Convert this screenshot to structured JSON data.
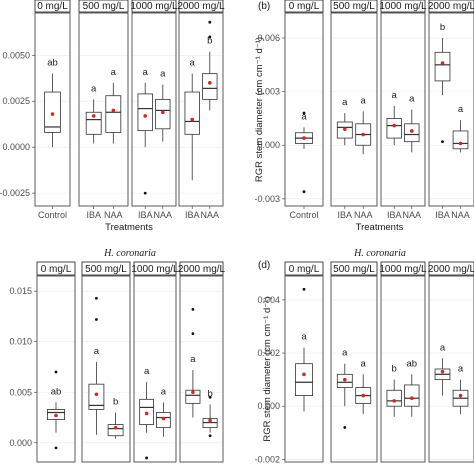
{
  "colors": {
    "mean": "#d62728",
    "outlier": "#111111",
    "box_stroke": "#333333",
    "grid": "#ebebeb"
  },
  "chart_data": [
    {
      "type": "box",
      "tag": "",
      "title": "",
      "ylabel": "",
      "xlabel": "Treatments",
      "ylim": [
        -0.0032,
        0.0073
      ],
      "yticks": [
        -0.0025,
        0.0,
        0.0025,
        0.005
      ],
      "ytick_labels": [
        "-0.0025",
        "0.0000",
        "0.0025",
        "0.0050"
      ],
      "facets": [
        {
          "label": "0 mg/L",
          "categories": [
            "Control"
          ],
          "boxes": [
            {
              "q1": 0.0008,
              "median": 0.0011,
              "q3": 0.003,
              "wlo": 0.0,
              "whi": 0.004,
              "mean": 0.0018,
              "outliers": [],
              "letter": "ab"
            }
          ]
        },
        {
          "label": "500 mg/L",
          "categories": [
            "IBA",
            "NAA"
          ],
          "boxes": [
            {
              "q1": 0.0007,
              "median": 0.0015,
              "q3": 0.0019,
              "wlo": 0.0002,
              "whi": 0.0026,
              "mean": 0.0017,
              "outliers": [],
              "letter": "a"
            },
            {
              "q1": 0.0008,
              "median": 0.0019,
              "q3": 0.0028,
              "wlo": 0.0002,
              "whi": 0.0035,
              "mean": 0.002,
              "outliers": [],
              "letter": "a"
            }
          ]
        },
        {
          "label": "1000 mg/L",
          "categories": [
            "IBA",
            "NAA"
          ],
          "boxes": [
            {
              "q1": 0.0009,
              "median": 0.0021,
              "q3": 0.0029,
              "wlo": 0.0,
              "whi": 0.0035,
              "mean": 0.0017,
              "outliers": [
                -0.0025
              ],
              "letter": "a"
            },
            {
              "q1": 0.001,
              "median": 0.002,
              "q3": 0.0026,
              "wlo": 0.0003,
              "whi": 0.0034,
              "mean": 0.0019,
              "outliers": [],
              "letter": "a"
            }
          ]
        },
        {
          "label": "2000 mg/L",
          "categories": [
            "IBA",
            "NAA"
          ],
          "boxes": [
            {
              "q1": 0.0007,
              "median": 0.0014,
              "q3": 0.003,
              "wlo": -0.0018,
              "whi": 0.004,
              "mean": 0.0015,
              "outliers": [],
              "letter": "a"
            },
            {
              "q1": 0.0026,
              "median": 0.0032,
              "q3": 0.004,
              "wlo": 0.002,
              "whi": 0.0052,
              "mean": 0.0035,
              "outliers": [
                0.006,
                0.0068
              ],
              "letter": "b"
            }
          ]
        }
      ]
    },
    {
      "type": "box",
      "tag": "(b)",
      "title": "",
      "ylabel": "RGR stem diameter (cm cm⁻¹ d⁻¹)",
      "xlabel": "Treatments",
      "ylim": [
        -0.0034,
        0.0074
      ],
      "yticks": [
        -0.003,
        0.0,
        0.003,
        0.006
      ],
      "ytick_labels": [
        "-0.003",
        "0.000",
        "0.003",
        "0.006"
      ],
      "facets": [
        {
          "label": "0 mg/L",
          "categories": [
            "Control"
          ],
          "boxes": [
            {
              "q1": 0.0001,
              "median": 0.0004,
              "q3": 0.0007,
              "wlo": -0.0002,
              "whi": 0.001,
              "mean": 0.0004,
              "outliers": [
                0.0018,
                -0.0026
              ],
              "letter": "a"
            }
          ]
        },
        {
          "label": "500 mg/L",
          "categories": [
            "IBA",
            "NAA"
          ],
          "boxes": [
            {
              "q1": 0.0004,
              "median": 0.001,
              "q3": 0.0013,
              "wlo": 0.0,
              "whi": 0.0018,
              "mean": 0.0009,
              "outliers": [],
              "letter": "a"
            },
            {
              "q1": 0.0,
              "median": 0.0006,
              "q3": 0.0012,
              "wlo": -0.0005,
              "whi": 0.0019,
              "mean": 0.0006,
              "outliers": [],
              "letter": "a"
            }
          ]
        },
        {
          "label": "1000 mg/L",
          "categories": [
            "IBA",
            "NAA"
          ],
          "boxes": [
            {
              "q1": 0.0004,
              "median": 0.0011,
              "q3": 0.0015,
              "wlo": 0.0,
              "whi": 0.0022,
              "mean": 0.0011,
              "outliers": [],
              "letter": "a"
            },
            {
              "q1": 0.0002,
              "median": 0.0006,
              "q3": 0.0012,
              "wlo": -0.0004,
              "whi": 0.002,
              "mean": 0.0008,
              "outliers": [],
              "letter": "a"
            }
          ]
        },
        {
          "label": "2000 mg/L",
          "categories": [
            "IBA",
            "NAA"
          ],
          "boxes": [
            {
              "q1": 0.0036,
              "median": 0.0045,
              "q3": 0.0052,
              "wlo": 0.0028,
              "whi": 0.006,
              "mean": 0.0046,
              "outliers": [
                0.0002
              ],
              "letter": "b"
            },
            {
              "q1": -0.0002,
              "median": 0.0001,
              "q3": 0.0008,
              "wlo": -0.0004,
              "whi": 0.0014,
              "mean": 0.0001,
              "outliers": [],
              "letter": "a"
            }
          ]
        }
      ]
    },
    {
      "type": "box",
      "tag": "",
      "title": "H. coronaria",
      "ylabel": "",
      "xlabel": "",
      "ylim": [
        -0.0019,
        0.0165
      ],
      "yticks": [
        0.0,
        0.005,
        0.01,
        0.015
      ],
      "ytick_labels": [
        "0.000",
        "0.005",
        "0.010",
        "0.015"
      ],
      "facets": [
        {
          "label": "0 mg/L",
          "categories": [],
          "boxes": [
            {
              "q1": 0.0023,
              "median": 0.003,
              "q3": 0.0033,
              "wlo": 0.001,
              "whi": 0.004,
              "mean": 0.0027,
              "outliers": [
                0.007,
                -0.0005
              ],
              "letter": "ab"
            }
          ]
        },
        {
          "label": "500 mg/L",
          "categories": [],
          "boxes": [
            {
              "q1": 0.0033,
              "median": 0.0037,
              "q3": 0.0058,
              "wlo": 0.0008,
              "whi": 0.008,
              "mean": 0.0048,
              "outliers": [
                0.0143,
                0.0122
              ],
              "letter": "a"
            },
            {
              "q1": 0.0007,
              "median": 0.0014,
              "q3": 0.0018,
              "wlo": 0.0004,
              "whi": 0.003,
              "mean": 0.0015,
              "outliers": [],
              "letter": "b"
            }
          ]
        },
        {
          "label": "1000 mg/L",
          "categories": [],
          "boxes": [
            {
              "q1": 0.0018,
              "median": 0.0035,
              "q3": 0.0043,
              "wlo": 0.001,
              "whi": 0.006,
              "mean": 0.0029,
              "outliers": [
                -0.0015
              ],
              "letter": "a"
            },
            {
              "q1": 0.0015,
              "median": 0.0025,
              "q3": 0.003,
              "wlo": 0.0006,
              "whi": 0.004,
              "mean": 0.0024,
              "outliers": [],
              "letter": "a"
            }
          ]
        },
        {
          "label": "2000 mg/L",
          "categories": [],
          "boxes": [
            {
              "q1": 0.0039,
              "median": 0.0047,
              "q3": 0.0052,
              "wlo": 0.0025,
              "whi": 0.0072,
              "mean": 0.005,
              "outliers": [
                0.0108,
                0.0132
              ],
              "letter": "a"
            },
            {
              "q1": 0.0015,
              "median": 0.002,
              "q3": 0.0024,
              "wlo": 0.001,
              "whi": 0.0038,
              "mean": 0.0022,
              "outliers": [
                0.0045,
                0.0007
              ],
              "letter": "b"
            }
          ]
        }
      ]
    },
    {
      "type": "box",
      "tag": "(d)",
      "title": "H. coronaria",
      "ylabel": "RGR stem diameter (cm cm⁻¹ d⁻¹)",
      "xlabel": "",
      "ylim": [
        -0.0021,
        0.0049
      ],
      "yticks": [
        -0.002,
        0.0,
        0.002,
        0.004
      ],
      "ytick_labels": [
        "-0.002",
        "0.000",
        "0.002",
        "0.004"
      ],
      "facets": [
        {
          "label": "0 mg/L",
          "categories": [],
          "boxes": [
            {
              "q1": 0.0004,
              "median": 0.0009,
              "q3": 0.0016,
              "wlo": -0.0002,
              "whi": 0.0022,
              "mean": 0.0012,
              "outliers": [
                0.0044
              ],
              "letter": "a"
            }
          ]
        },
        {
          "label": "500 mg/L",
          "categories": [],
          "boxes": [
            {
              "q1": 0.0007,
              "median": 0.0009,
              "q3": 0.0012,
              "wlo": 0.0,
              "whi": 0.0016,
              "mean": 0.001,
              "outliers": [
                -0.0008
              ],
              "letter": "a"
            },
            {
              "q1": 0.0001,
              "median": 0.0004,
              "q3": 0.0007,
              "wlo": -0.0003,
              "whi": 0.0012,
              "mean": 0.0004,
              "outliers": [],
              "letter": "a"
            }
          ]
        },
        {
          "label": "1000 mg/L",
          "categories": [],
          "boxes": [
            {
              "q1": 0.0,
              "median": 0.0002,
              "q3": 0.0006,
              "wlo": -0.0004,
              "whi": 0.001,
              "mean": 0.0002,
              "outliers": [],
              "letter": "b"
            },
            {
              "q1": 0.0,
              "median": 0.0003,
              "q3": 0.0008,
              "wlo": -0.0004,
              "whi": 0.0012,
              "mean": 0.0003,
              "outliers": [],
              "letter": "ab"
            }
          ]
        },
        {
          "label": "2000 mg/L",
          "categories": [],
          "boxes": [
            {
              "q1": 0.001,
              "median": 0.0012,
              "q3": 0.0014,
              "wlo": 0.0004,
              "whi": 0.0018,
              "mean": 0.0013,
              "outliers": [],
              "letter": "a"
            },
            {
              "q1": 0.0,
              "median": 0.0003,
              "q3": 0.0006,
              "wlo": -0.0003,
              "whi": 0.001,
              "mean": 0.0004,
              "outliers": [],
              "letter": "a"
            }
          ]
        }
      ]
    }
  ]
}
